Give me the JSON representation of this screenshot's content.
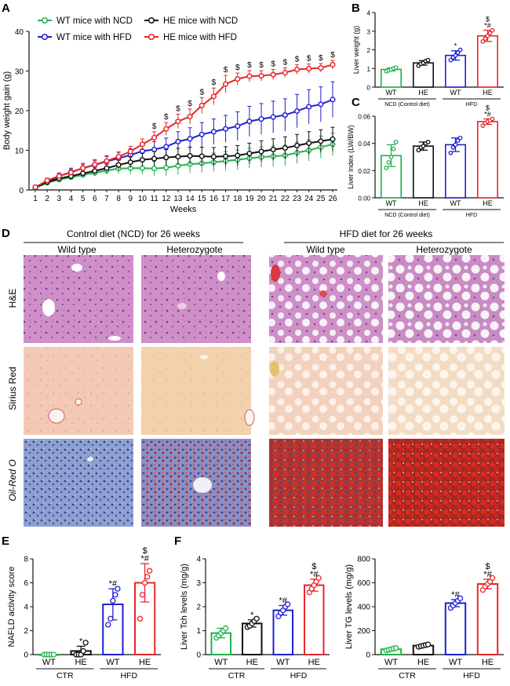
{
  "colors": {
    "wt_ncd": "#22b14c",
    "wt_hfd": "#1f1fd1",
    "he_ncd": "#111111",
    "he_hfd": "#e8262a",
    "he_white": "#ffffff"
  },
  "chart_data": [
    {
      "panel": "A",
      "type": "line",
      "xlabel": "Weeks",
      "ylabel": "Body weight gain (g)",
      "ylim": [
        0,
        40
      ],
      "yticks": [
        0,
        10,
        20,
        30,
        40
      ],
      "x": [
        1,
        2,
        3,
        4,
        5,
        6,
        7,
        8,
        9,
        10,
        11,
        12,
        13,
        14,
        15,
        16,
        17,
        18,
        19,
        20,
        21,
        22,
        23,
        24,
        25,
        26
      ],
      "legend_position": "top-left",
      "series": [
        {
          "name": "WT mice with NCD",
          "color": "#22b14c",
          "values": [
            0.5,
            1.8,
            2.6,
            3.2,
            3.8,
            4.3,
            4.9,
            5.4,
            5.5,
            5.5,
            5.4,
            5.6,
            6.1,
            6.5,
            6.7,
            7.0,
            7.3,
            7.6,
            8.0,
            8.3,
            8.5,
            8.7,
            9.4,
            10.0,
            10.8,
            11.5
          ],
          "errors": [
            0.3,
            0.5,
            0.5,
            0.6,
            0.7,
            0.8,
            1.0,
            1.2,
            1.5,
            1.6,
            1.8,
            2.0,
            2.2,
            2.2,
            2.3,
            2.3,
            2.4,
            2.5,
            2.5,
            2.6,
            2.6,
            2.6,
            2.7,
            2.7,
            2.8,
            2.8
          ]
        },
        {
          "name": "WT mice with HFD",
          "color": "#1f1fd1",
          "values": [
            0.7,
            2.1,
            3.5,
            4.5,
            5.5,
            6.3,
            7.2,
            8.0,
            8.8,
            9.8,
            10.2,
            10.9,
            12.2,
            12.9,
            14.0,
            14.7,
            15.4,
            16.1,
            17.3,
            17.9,
            18.4,
            18.9,
            19.9,
            21.0,
            21.6,
            22.8
          ],
          "errors": [
            0.3,
            0.6,
            0.8,
            1.0,
            1.2,
            1.3,
            1.4,
            1.5,
            1.6,
            1.8,
            2.0,
            2.2,
            2.5,
            2.8,
            3.0,
            3.2,
            3.4,
            3.6,
            3.8,
            3.9,
            4.0,
            4.1,
            4.2,
            4.3,
            4.4,
            4.5
          ]
        },
        {
          "name": "HE mice with NCD",
          "color": "#111111",
          "values": [
            0.6,
            2.0,
            2.9,
            3.5,
            4.2,
            4.8,
            5.5,
            6.3,
            7.0,
            7.6,
            7.9,
            8.2,
            8.4,
            8.6,
            8.5,
            8.4,
            8.5,
            8.7,
            9.2,
            9.7,
            10.2,
            10.6,
            11.2,
            11.8,
            12.3,
            12.8
          ],
          "errors": [
            0.3,
            0.5,
            0.6,
            0.7,
            0.8,
            0.9,
            1.0,
            1.2,
            1.4,
            1.6,
            1.8,
            2.0,
            2.1,
            2.2,
            2.3,
            2.3,
            2.4,
            2.5,
            2.6,
            2.7,
            2.7,
            2.8,
            2.8,
            2.9,
            2.9,
            3.0
          ]
        },
        {
          "name": "HE mice with HFD",
          "color": "#e8262a",
          "values": [
            0.7,
            2.4,
            3.5,
            4.4,
            5.5,
            6.4,
            7.3,
            8.4,
            9.7,
            11.5,
            13.2,
            15.4,
            17.3,
            18.5,
            21.3,
            23.6,
            26.7,
            28.0,
            28.7,
            28.8,
            29.1,
            29.6,
            30.4,
            30.6,
            30.8,
            31.6
          ],
          "errors": [
            0.3,
            0.6,
            0.7,
            0.8,
            0.9,
            1.0,
            1.1,
            1.2,
            1.3,
            1.4,
            1.5,
            1.6,
            1.8,
            1.9,
            2.0,
            2.1,
            2.2,
            1.5,
            1.4,
            1.3,
            1.3,
            1.2,
            1.2,
            1.2,
            1.1,
            1.1
          ]
        }
      ],
      "sig_weeks": [
        11,
        12,
        13,
        14,
        15,
        16,
        17,
        18,
        19,
        20,
        21,
        22,
        23,
        24,
        25,
        26
      ],
      "sig_symbol": "$"
    },
    {
      "panel": "B",
      "type": "bar",
      "ylabel": "Liver weight (g)",
      "ylim": [
        0,
        4
      ],
      "yticks": [
        0,
        1,
        2,
        3,
        4
      ],
      "categories": [
        "WT",
        "HE",
        "WT",
        "HE"
      ],
      "groups": [
        "NCD (Control diet)",
        "HFD"
      ],
      "values": [
        0.95,
        1.3,
        1.7,
        2.75
      ],
      "errors": [
        0.08,
        0.12,
        0.25,
        0.3
      ],
      "points": [
        [
          0.85,
          0.9,
          0.95,
          1.0,
          1.05
        ],
        [
          1.15,
          1.25,
          1.3,
          1.4,
          1.45
        ],
        [
          1.45,
          1.6,
          1.7,
          1.85,
          2.0
        ],
        [
          2.45,
          2.6,
          2.75,
          2.9,
          3.05
        ]
      ],
      "marks": [
        "",
        "",
        "*",
        "$\n*#"
      ]
    },
    {
      "panel": "C",
      "type": "bar",
      "ylabel": "Liver index (LW/BW)",
      "ylim": [
        0,
        0.06
      ],
      "yticks": [
        "0.00",
        "0.02",
        "0.04",
        "0.06"
      ],
      "categories": [
        "WT",
        "HE",
        "WT",
        "HE"
      ],
      "groups": [
        "NCD (Control diet)",
        "HFD"
      ],
      "values": [
        0.031,
        0.038,
        0.039,
        0.056
      ],
      "errors": [
        0.008,
        0.003,
        0.005,
        0.002
      ],
      "points": [
        [
          0.022,
          0.026,
          0.03,
          0.036,
          0.041
        ],
        [
          0.035,
          0.037,
          0.038,
          0.04,
          0.041
        ],
        [
          0.033,
          0.037,
          0.039,
          0.042,
          0.044
        ],
        [
          0.053,
          0.055,
          0.056,
          0.057,
          0.058
        ]
      ],
      "marks": [
        "",
        "",
        "",
        "$\n*#"
      ]
    },
    {
      "panel": "E",
      "type": "bar",
      "ylabel": "NAFLD activity score",
      "ylim": [
        0,
        8
      ],
      "yticks": [
        0,
        2,
        4,
        6,
        8
      ],
      "categories": [
        "WT",
        "HE",
        "WT",
        "HE"
      ],
      "groups": [
        "CTR",
        "HFD"
      ],
      "values": [
        0,
        0.3,
        4.2,
        6.0
      ],
      "errors": [
        0,
        0.4,
        1.3,
        1.6
      ],
      "points": [
        [
          0,
          0,
          0,
          0,
          0
        ],
        [
          0,
          0,
          0,
          0.3,
          1.0
        ],
        [
          2.5,
          3.0,
          4.5,
          5.0,
          5.5
        ],
        [
          3.0,
          5.0,
          6.0,
          6.5,
          7.0
        ]
      ],
      "marks": [
        "",
        "*",
        "*#",
        "$\n*#"
      ]
    },
    {
      "panel": "F1",
      "type": "bar",
      "ylabel": "Liver Tch levels (mg/g)",
      "ylim": [
        0,
        4
      ],
      "yticks": [
        0,
        1,
        2,
        3,
        4
      ],
      "categories": [
        "WT",
        "HE",
        "WT",
        "HE"
      ],
      "groups": [
        "CTR",
        "HFD"
      ],
      "values": [
        0.9,
        1.3,
        1.85,
        2.9
      ],
      "errors": [
        0.2,
        0.15,
        0.2,
        0.25
      ],
      "points": [
        [
          0.7,
          0.8,
          0.9,
          1.0,
          1.1
        ],
        [
          1.15,
          1.2,
          1.3,
          1.4,
          1.5
        ],
        [
          1.6,
          1.75,
          1.85,
          2.0,
          2.1
        ],
        [
          2.6,
          2.75,
          2.9,
          3.05,
          3.2
        ]
      ],
      "marks": [
        "",
        "*",
        "*#",
        "$\n*#"
      ]
    },
    {
      "panel": "F2",
      "type": "bar",
      "ylabel": "Liver TG levels (mg/g)",
      "ylim": [
        0,
        800
      ],
      "yticks": [
        0,
        200,
        400,
        600,
        800
      ],
      "categories": [
        "WT",
        "HE",
        "WT",
        "HE"
      ],
      "groups": [
        "CTR",
        "HFD"
      ],
      "values": [
        45,
        75,
        430,
        590
      ],
      "errors": [
        8,
        10,
        30,
        40
      ],
      "points": [
        [
          35,
          40,
          45,
          50,
          55
        ],
        [
          65,
          70,
          75,
          80,
          85
        ],
        [
          390,
          410,
          430,
          450,
          470
        ],
        [
          540,
          570,
          590,
          610,
          640
        ]
      ],
      "marks": [
        "",
        "",
        "*#",
        "$\n*#"
      ]
    }
  ],
  "panel_d": {
    "letter": "D",
    "group_left": "Control diet (NCD) for 26 weeks",
    "group_right": "HFD diet for 26 weeks",
    "columns": [
      "Wild type",
      "Heterozygote",
      "Wild type",
      "Heterozygote"
    ],
    "rows": [
      "H&E",
      "Sirius Red",
      "Oil-Red O"
    ]
  },
  "letters": {
    "a": "A",
    "b": "B",
    "c": "C",
    "d": "D",
    "e": "E",
    "f": "F"
  }
}
